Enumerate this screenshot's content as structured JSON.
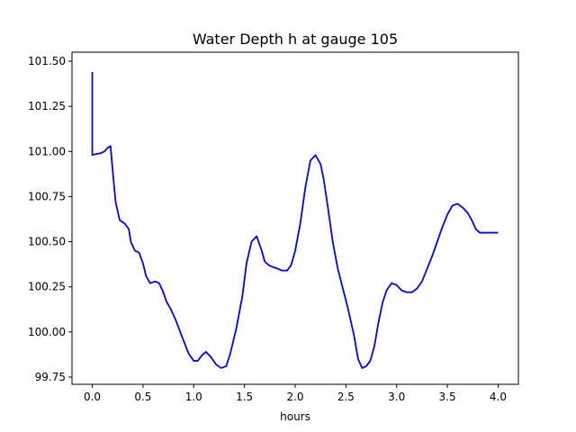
{
  "chart_data": {
    "type": "line",
    "title": "Water Depth h at gauge 105",
    "xlabel": "hours",
    "ylabel": "",
    "xlim": [
      -0.2,
      4.2
    ],
    "ylim": [
      99.71,
      101.55
    ],
    "xticks": [
      0.0,
      0.5,
      1.0,
      1.5,
      2.0,
      2.5,
      3.0,
      3.5,
      4.0
    ],
    "xtick_labels": [
      "0.0",
      "0.5",
      "1.0",
      "1.5",
      "2.0",
      "2.5",
      "3.0",
      "3.5",
      "4.0"
    ],
    "yticks": [
      99.75,
      100.0,
      100.25,
      100.5,
      100.75,
      101.0,
      101.25,
      101.5
    ],
    "ytick_labels": [
      "99.75",
      "100.00",
      "100.25",
      "100.50",
      "100.75",
      "101.00",
      "101.25",
      "101.50"
    ],
    "grid": false,
    "series": [
      {
        "color": "#0000ff",
        "x": [
          0.0,
          0.0,
          0.0,
          0.03,
          0.08,
          0.12,
          0.15,
          0.18,
          0.2,
          0.23,
          0.27,
          0.32,
          0.36,
          0.38,
          0.42,
          0.46,
          0.5,
          0.53,
          0.57,
          0.62,
          0.66,
          0.7,
          0.73,
          0.77,
          0.82,
          0.88,
          0.95,
          1.0,
          1.04,
          1.08,
          1.12,
          1.17,
          1.22,
          1.27,
          1.32,
          1.36,
          1.42,
          1.48,
          1.52,
          1.57,
          1.62,
          1.67,
          1.7,
          1.74,
          1.78,
          1.83,
          1.87,
          1.92,
          1.96,
          2.0,
          2.05,
          2.1,
          2.15,
          2.2,
          2.25,
          2.28,
          2.32,
          2.37,
          2.42,
          2.47,
          2.52,
          2.58,
          2.62,
          2.66,
          2.7,
          2.74,
          2.78,
          2.82,
          2.86,
          2.9,
          2.95,
          3.0,
          3.05,
          3.1,
          3.15,
          3.2,
          3.25,
          3.3,
          3.35,
          3.4,
          3.45,
          3.5,
          3.55,
          3.6,
          3.65,
          3.7,
          3.74,
          3.78,
          3.82,
          3.86,
          3.9,
          3.94,
          3.98,
          4.0
        ],
        "y": [
          101.44,
          100.98,
          100.98,
          100.985,
          100.99,
          101.0,
          101.02,
          101.03,
          100.9,
          100.72,
          100.62,
          100.6,
          100.57,
          100.5,
          100.45,
          100.44,
          100.38,
          100.31,
          100.27,
          100.28,
          100.27,
          100.22,
          100.17,
          100.13,
          100.07,
          99.98,
          99.88,
          99.84,
          99.84,
          99.87,
          99.89,
          99.86,
          99.82,
          99.8,
          99.81,
          99.88,
          100.02,
          100.2,
          100.38,
          100.5,
          100.53,
          100.45,
          100.39,
          100.37,
          100.36,
          100.35,
          100.34,
          100.34,
          100.37,
          100.45,
          100.6,
          100.8,
          100.95,
          100.98,
          100.93,
          100.85,
          100.7,
          100.5,
          100.35,
          100.24,
          100.13,
          99.98,
          99.85,
          99.8,
          99.81,
          99.84,
          99.92,
          100.05,
          100.16,
          100.23,
          100.27,
          100.26,
          100.23,
          100.22,
          100.22,
          100.24,
          100.28,
          100.35,
          100.42,
          100.5,
          100.58,
          100.65,
          100.7,
          100.71,
          100.69,
          100.66,
          100.62,
          100.57,
          100.55,
          100.55,
          100.55,
          100.55,
          100.55,
          100.55
        ]
      }
    ]
  }
}
